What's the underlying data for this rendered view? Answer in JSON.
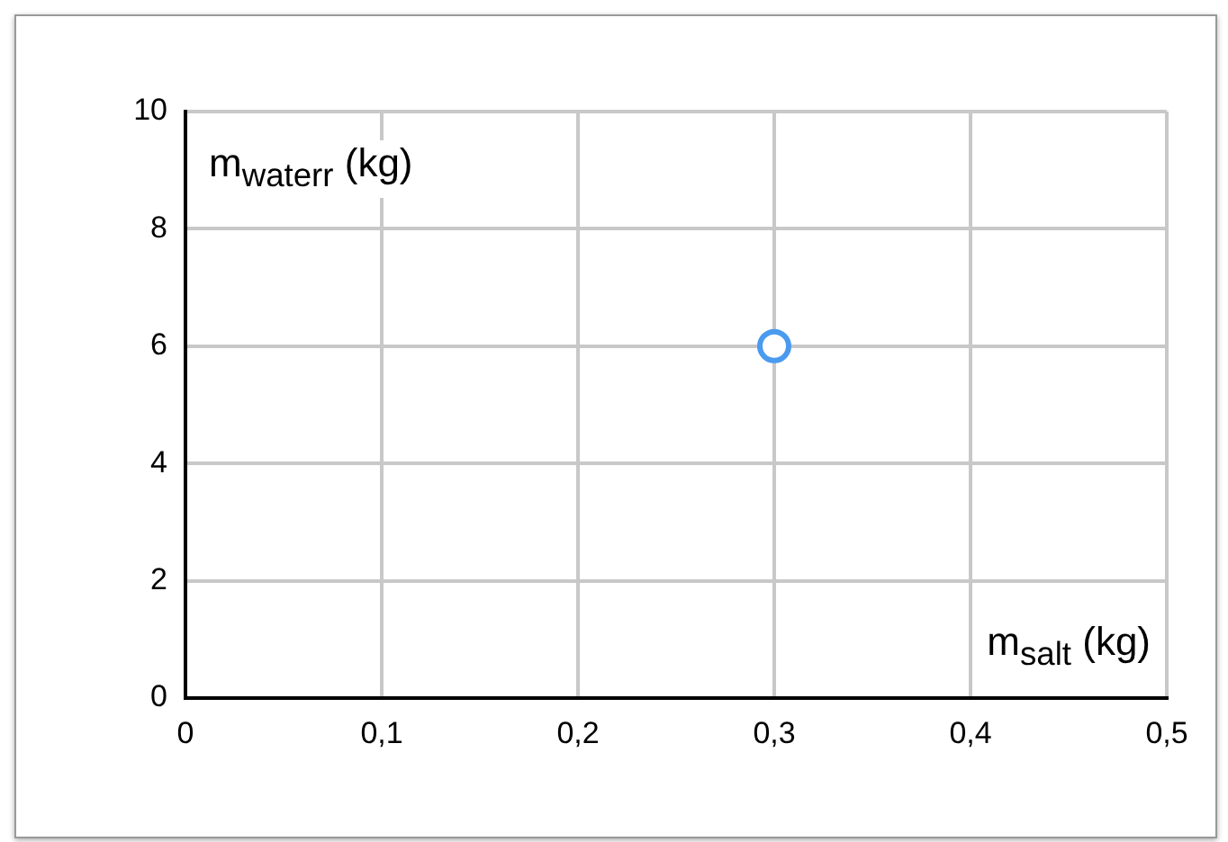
{
  "chart_data": {
    "type": "scatter",
    "xlabel": "m$_{salt}$ (kg)",
    "ylabel": "m$_{waterr}$ (kg)",
    "x": [
      0.3
    ],
    "series": [
      {
        "color": "#4a9af0",
        "values": [
          6
        ]
      }
    ],
    "xlim": [
      0,
      0.5
    ],
    "xticks": [
      0,
      {
        "value": 0.1,
        "label": "0,1"
      },
      {
        "value": 0.2,
        "label": "0,2"
      },
      {
        "value": 0.3,
        "label": "0,3"
      },
      {
        "value": 0.4,
        "label": "0,4"
      },
      {
        "value": 0.5,
        "label": "0,5"
      }
    ],
    "ylim": [
      0,
      10
    ],
    "yticks": [
      0,
      2,
      4,
      6,
      8,
      10
    ],
    "grid": true,
    "marker": "circle"
  }
}
